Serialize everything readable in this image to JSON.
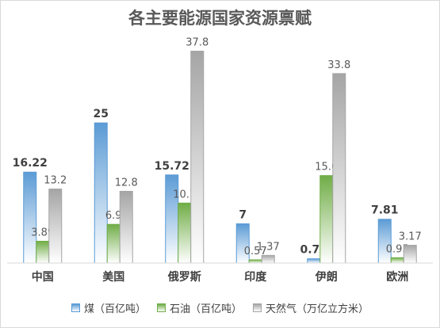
{
  "chart_data": {
    "type": "bar",
    "title": "各主要能源国家资源禀赋",
    "categories": [
      "中国",
      "美国",
      "俄罗斯",
      "印度",
      "伊朗",
      "欧洲"
    ],
    "series": [
      {
        "name": "煤（百亿吨）",
        "values": [
          16.22,
          25,
          15.72,
          7,
          0.76,
          7.81
        ],
        "value_labels": [
          "16.22",
          "25",
          "15.72",
          "7",
          "0.76",
          "7.81"
        ],
        "color": "#5b9bd5",
        "label_bold": true
      },
      {
        "name": "石油（百亿吨）",
        "values": [
          3.89,
          6.9,
          10.7,
          0.57,
          15.6,
          0.95
        ],
        "value_labels": [
          "3.89",
          "6.9",
          "10.7",
          "0.57",
          "15.6",
          "0.95"
        ],
        "color": "#70ad47",
        "label_bold": false
      },
      {
        "name": "天然气（万亿立方米）",
        "values": [
          13.2,
          12.8,
          37.8,
          1.37,
          33.8,
          3.17
        ],
        "value_labels": [
          "13.2",
          "12.8",
          "37.8",
          "1.37",
          "33.8",
          "3.17"
        ],
        "color": "#a5a5a5",
        "label_bold": false
      }
    ],
    "ylim": [
      0,
      40
    ],
    "grid": false,
    "legend_position": "bottom"
  }
}
